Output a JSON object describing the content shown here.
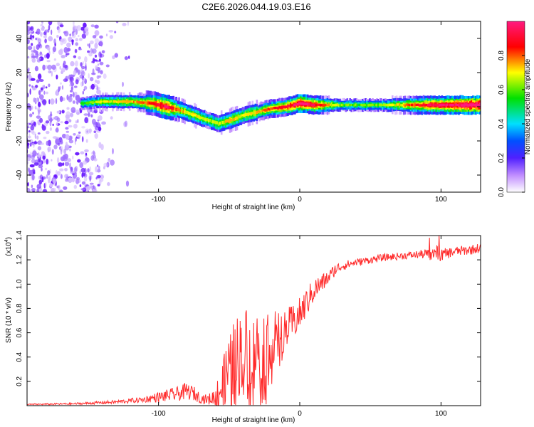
{
  "figure_title": "C2E6.2026.044.19.03.E16",
  "chart_data": [
    {
      "type": "heatmap",
      "title": "",
      "xlabel": "Height of straight line (km)",
      "ylabel": "Frequency (Hz)",
      "xlim": [
        -193,
        128
      ],
      "ylim": [
        -50,
        50
      ],
      "xticks": [
        -100,
        0,
        100
      ],
      "yticks": [
        -40,
        -20,
        0,
        20,
        40
      ],
      "colorbar": {
        "label": "Normalized spectral amplitude",
        "range": [
          0,
          1
        ],
        "ticks": [
          0.0,
          0.2,
          0.4,
          0.6,
          0.8
        ],
        "colors": [
          "#ffffff",
          "#a64dff",
          "#2020ff",
          "#00e5ff",
          "#00e000",
          "#ffff00",
          "#ff0000",
          "#ff2080"
        ]
      },
      "noise_region_x": [
        -193,
        -140
      ],
      "ridge": {
        "x": [
          -155,
          -140,
          -120,
          -105,
          -95,
          -85,
          -75,
          -65,
          -58,
          -50,
          -40,
          -30,
          -20,
          -10,
          0,
          10,
          30,
          60,
          90,
          128
        ],
        "freq": [
          2,
          3,
          3,
          2,
          0,
          -2,
          -5,
          -8,
          -10,
          -8,
          -5,
          -3,
          -1,
          0,
          2,
          1,
          1,
          1,
          1,
          1
        ],
        "peak_amplitude": [
          0.4,
          0.55,
          0.6,
          0.7,
          0.85,
          0.6,
          0.55,
          0.5,
          0.55,
          0.6,
          0.55,
          0.6,
          0.7,
          0.75,
          0.9,
          0.8,
          0.45,
          0.5,
          0.8,
          0.95
        ]
      }
    },
    {
      "type": "line",
      "title": "",
      "xlabel": "Height of straight line (km)",
      "ylabel": "SNR (10 * v/v)",
      "y_multiplier_label": "(x10",
      "y_multiplier_exp": "4",
      "y_multiplier_close": ")",
      "xlim": [
        -193,
        128
      ],
      "ylim": [
        0,
        1.4
      ],
      "xticks": [
        -100,
        0,
        100
      ],
      "yticks": [
        0.2,
        0.4,
        0.6,
        0.8,
        1.0,
        1.2,
        1.4
      ],
      "color": "#ff2a2a",
      "series": [
        {
          "name": "SNR",
          "x": [
            -193,
            -160,
            -130,
            -110,
            -95,
            -85,
            -80,
            -75,
            -70,
            -65,
            -60,
            -55,
            -50,
            -45,
            -40,
            -35,
            -30,
            -25,
            -20,
            -15,
            -10,
            -5,
            0,
            5,
            10,
            15,
            20,
            25,
            30,
            40,
            50,
            60,
            70,
            80,
            90,
            95,
            100,
            110,
            120,
            128
          ],
          "baseline": [
            0.01,
            0.015,
            0.03,
            0.05,
            0.08,
            0.1,
            0.12,
            0.1,
            0.06,
            0.05,
            0.07,
            0.15,
            0.3,
            0.4,
            0.45,
            0.5,
            0.48,
            0.52,
            0.55,
            0.6,
            0.62,
            0.68,
            0.75,
            0.85,
            0.95,
            1.0,
            1.05,
            1.12,
            1.15,
            1.18,
            1.2,
            1.22,
            1.23,
            1.24,
            1.25,
            1.26,
            1.24,
            1.27,
            1.28,
            1.3
          ],
          "jitter": [
            0.005,
            0.008,
            0.015,
            0.025,
            0.05,
            0.06,
            0.07,
            0.06,
            0.04,
            0.04,
            0.08,
            0.2,
            0.3,
            0.35,
            0.35,
            0.35,
            0.3,
            0.3,
            0.25,
            0.2,
            0.18,
            0.15,
            0.14,
            0.12,
            0.1,
            0.08,
            0.06,
            0.05,
            0.04,
            0.03,
            0.03,
            0.03,
            0.03,
            0.03,
            0.04,
            0.08,
            0.05,
            0.04,
            0.04,
            0.04
          ]
        }
      ]
    }
  ]
}
